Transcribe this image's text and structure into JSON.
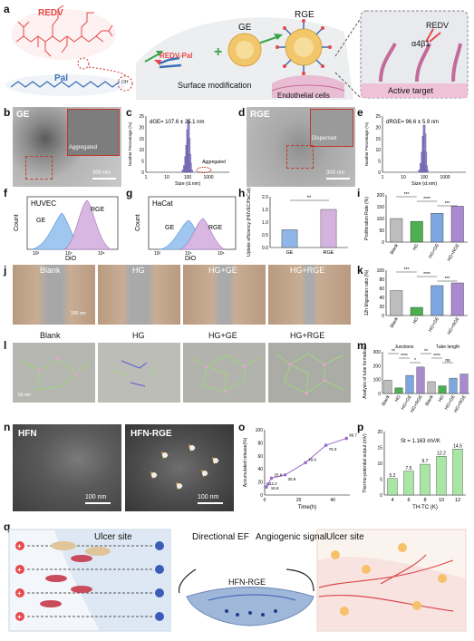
{
  "panels": {
    "a": "a",
    "b": "b",
    "c": "c",
    "d": "d",
    "e": "e",
    "f": "f",
    "g": "g",
    "h": "h",
    "i": "i",
    "j": "j",
    "k": "k",
    "l": "l",
    "m": "m",
    "n": "n",
    "o": "o",
    "p": "p",
    "q": "q"
  },
  "a": {
    "redv": "REDV",
    "pal": "Pal",
    "ge": "GE",
    "redv_pal": "REDV-Pal",
    "plus": "+",
    "surface_mod": "Surface modification",
    "rge": "RGE",
    "endothelial": "Endothelial cells",
    "redv2": "REDV",
    "a4b1": "α4β1",
    "active_target": "Active target",
    "oh": "OH",
    "colors": {
      "redv": "#e8484a",
      "pal": "#3b6fb6",
      "ge_sphere": "#f2c66b",
      "green_arrow": "#3aa648",
      "cell": "#c46a9a"
    }
  },
  "b": {
    "title": "GE",
    "inset": "Aggregated",
    "scale": "300 nm"
  },
  "c": {
    "annot": "dGE= 107.6 ± 25.1 nm",
    "agg": "Aggregated",
    "ylabel": "Number Percentage (%)",
    "xlabel": "Size (d.nm)",
    "yticks": [
      "0",
      "5",
      "10",
      "15",
      "20",
      "25"
    ],
    "xticks": [
      "1",
      "10",
      "100",
      "1000"
    ]
  },
  "d": {
    "title": "RGE",
    "inset": "Dispersed",
    "scale": "300 nm"
  },
  "e": {
    "annot": "dRGE= 96.6 ± 5.9 nm",
    "ylabel": "Number Percentage (%)",
    "xlabel": "Size (d.nm)",
    "yticks": [
      "0",
      "5",
      "10",
      "15",
      "20",
      "25"
    ],
    "xticks": [
      "1",
      "10",
      "100",
      "1000"
    ]
  },
  "f": {
    "title": "HUVEC",
    "ge": "GE",
    "rge": "RGE",
    "ylabel": "Count",
    "xlabel": "DiO",
    "xticks": [
      "10²",
      "10⁴",
      "10⁶"
    ]
  },
  "g": {
    "title": "HaCat",
    "ge": "GE",
    "rge": "RGE",
    "ylabel": "Count",
    "xlabel": "DiO",
    "xticks": [
      "10²",
      "10⁴",
      "10⁶"
    ]
  },
  "h": {
    "ylabel": "Uptake efficiency (HUVEC/HaCat)",
    "sig": "**",
    "yticks": [
      "0.0",
      "0.5",
      "1.0",
      "1.5",
      "2.0"
    ]
  },
  "i": {
    "ylabel": "Proliferation Rate (%)",
    "yticks": [
      "0",
      "50",
      "100",
      "150",
      "200"
    ]
  },
  "j": {
    "labels": [
      "Blank",
      "HG",
      "HG+GE",
      "HG+RGE"
    ],
    "scale": "100 nm"
  },
  "k": {
    "ylabel": "12h Migration ratio (%)",
    "yticks": [
      "0",
      "20",
      "40",
      "60",
      "80",
      "100"
    ]
  },
  "l": {
    "labels": [
      "Blank",
      "HG",
      "HG+GE",
      "HG+RGE"
    ],
    "scale": "50 nm"
  },
  "m": {
    "ylabel": "Analysis of tube formation",
    "junctions": "Junctions",
    "tube_length": "Tube length",
    "yticks": [
      "0",
      "100",
      "200",
      "300"
    ]
  },
  "n": {
    "left": "HFN",
    "right": "HFN-RGE",
    "scale": "100 nm"
  },
  "o": {
    "ylabel": "Accumulated release(%)",
    "xlabel": "Time(h)",
    "yticks": [
      "0",
      "20",
      "40",
      "60",
      "80",
      "100"
    ],
    "xticks": [
      "0",
      "20",
      "40"
    ]
  },
  "p": {
    "annot": "St = 1.163 mV/K",
    "ylabel": "Thermo-potential output (mV)",
    "xlabel": "TH-TC (K)",
    "yticks": [
      "0",
      "5",
      "10",
      "15",
      "20"
    ]
  },
  "q": {
    "ulcer1": "Ulcer site",
    "directional": "Directional EF",
    "angiogenic": "Angiogenic signal",
    "hfn_rge": "HFN-RGE",
    "ulcer2": "Ulcer site"
  },
  "chart_data": [
    {
      "id": "c",
      "type": "bar",
      "title": "",
      "xlabel": "Size (d.nm)",
      "ylabel": "Number Percentage (%)",
      "xscale": "log",
      "xlim": [
        1,
        10000
      ],
      "ylim": [
        0,
        25
      ],
      "x": [
        60,
        70,
        80,
        90,
        100,
        110,
        120,
        130,
        140,
        160
      ],
      "values": [
        1,
        3,
        7,
        12,
        19,
        23,
        15,
        8,
        4,
        1
      ]
    },
    {
      "id": "e",
      "type": "bar",
      "title": "",
      "xlabel": "Size (d.nm)",
      "ylabel": "Number Percentage (%)",
      "xscale": "log",
      "xlim": [
        1,
        10000
      ],
      "ylim": [
        0,
        25
      ],
      "x": [
        60,
        70,
        80,
        90,
        100,
        110,
        120,
        130,
        140
      ],
      "values": [
        1,
        4,
        9,
        16,
        21,
        17,
        9,
        3,
        1
      ]
    },
    {
      "id": "h",
      "type": "bar",
      "xlabel": "",
      "ylabel": "Uptake efficiency (HUVEC/HaCat)",
      "ylim": [
        0,
        2.0
      ],
      "categories": [
        "GE",
        "RGE"
      ],
      "values": [
        0.7,
        1.5
      ],
      "colors": [
        "#8fb6e6",
        "#d4b3de"
      ]
    },
    {
      "id": "i",
      "type": "bar",
      "ylabel": "Proliferation Rate (%)",
      "ylim": [
        0,
        200
      ],
      "categories": [
        "Blank",
        "HG",
        "HG+GE",
        "HG+RGE"
      ],
      "values": [
        100,
        88,
        122,
        152
      ],
      "sig": [
        "***",
        "****",
        "***"
      ],
      "colors": [
        "#bdbdbd",
        "#4caf50",
        "#7ea6e0",
        "#a98ad1"
      ]
    },
    {
      "id": "k",
      "type": "bar",
      "ylabel": "12h Migration ratio (%)",
      "ylim": [
        0,
        100
      ],
      "categories": [
        "Blank",
        "HG",
        "HG+GE",
        "HG+RGE"
      ],
      "values": [
        55,
        18,
        66,
        72
      ],
      "sig": [
        "***",
        "****",
        "***"
      ],
      "colors": [
        "#bdbdbd",
        "#4caf50",
        "#7ea6e0",
        "#a98ad1"
      ]
    },
    {
      "id": "m",
      "type": "bar",
      "ylabel": "Analysis of tube formation",
      "ylim": [
        0,
        300
      ],
      "categories": [
        "Blank",
        "HG",
        "HG+GE",
        "HG+RGE",
        "Blank",
        "HG",
        "HG+GE",
        "HG+RGE"
      ],
      "values": [
        95,
        40,
        130,
        190,
        85,
        55,
        110,
        140
      ],
      "sig": [
        "**",
        "****",
        "*",
        "**",
        "****",
        "ns"
      ],
      "colors": [
        "#bdbdbd",
        "#4caf50",
        "#7ea6e0",
        "#a98ad1",
        "#bdbdbd",
        "#4caf50",
        "#7ea6e0",
        "#a98ad1"
      ]
    },
    {
      "id": "o",
      "type": "line",
      "xlabel": "Time(h)",
      "ylabel": "Accumulated release(%)",
      "xlim": [
        0,
        50
      ],
      "ylim": [
        0,
        100
      ],
      "x": [
        1,
        2,
        4,
        12,
        24,
        36,
        48
      ],
      "values": [
        12.2,
        16.9,
        25.8,
        30.9,
        49.6,
        76.3,
        86.7
      ],
      "labels": [
        "12.2",
        "16.9",
        "25.8",
        "30.9",
        "49.6",
        "76.3",
        "86.7"
      ],
      "color": "#9b6cc9"
    },
    {
      "id": "p",
      "type": "bar",
      "xlabel": "TH-TC (K)",
      "ylabel": "Thermo-potential output (mV)",
      "ylim": [
        0,
        20
      ],
      "categories": [
        "4",
        "6",
        "8",
        "10",
        "12"
      ],
      "values": [
        5.2,
        7.5,
        9.7,
        12.2,
        14.5
      ],
      "labels": [
        "5.2",
        "7.5",
        "9.7",
        "12.2",
        "14.5"
      ],
      "color": "#a9e6a3"
    }
  ]
}
